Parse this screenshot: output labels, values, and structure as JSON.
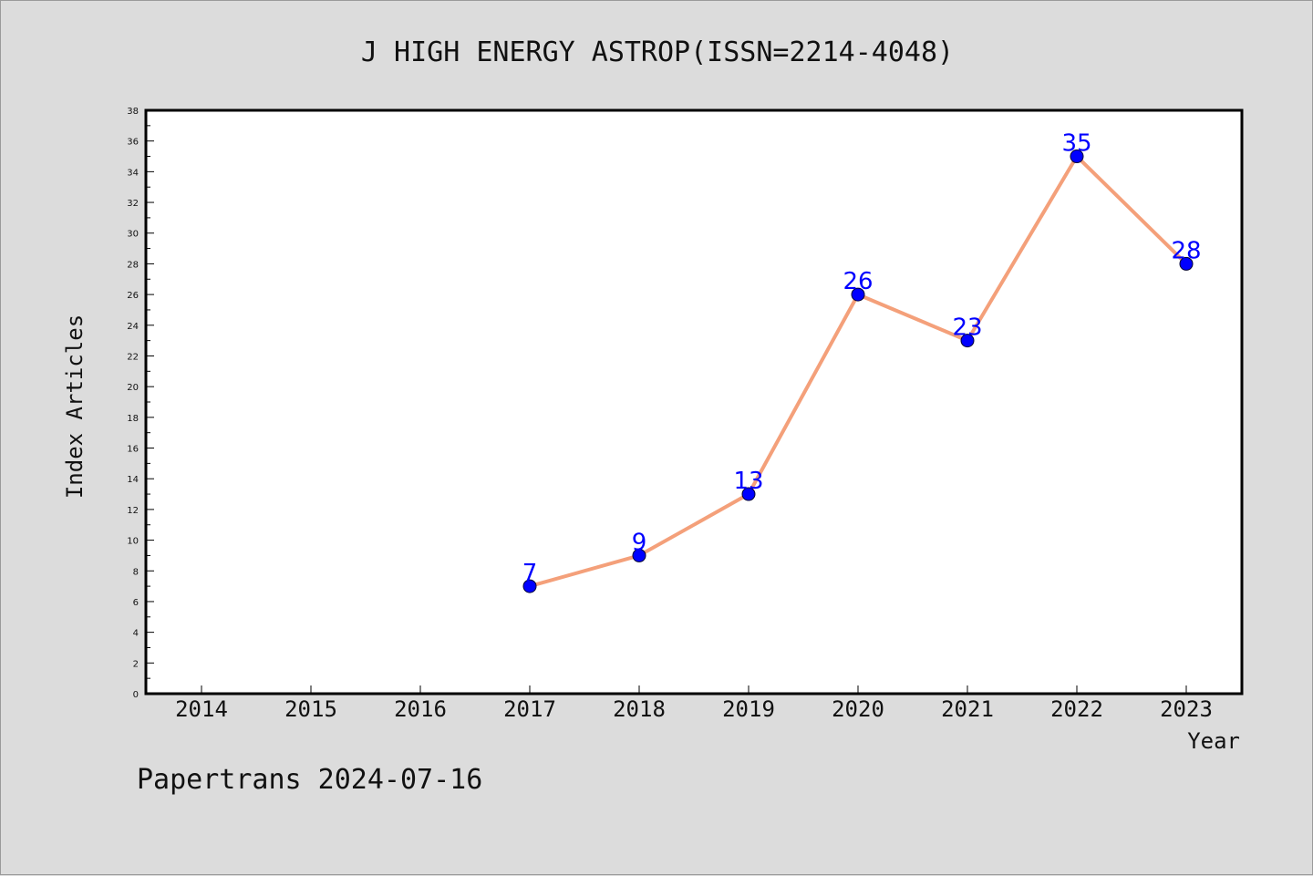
{
  "chart_data": {
    "type": "line",
    "title": "J HIGH ENERGY ASTROP(ISSN=2214-4048)",
    "xlabel": "Year",
    "ylabel": "Index Articles",
    "categories": [
      "2014",
      "2015",
      "2016",
      "2017",
      "2018",
      "2019",
      "2020",
      "2021",
      "2022",
      "2023"
    ],
    "series": [
      {
        "x": [
          "2017",
          "2018",
          "2019",
          "2020",
          "2021",
          "2022",
          "2023"
        ],
        "values": [
          7,
          9,
          13,
          26,
          23,
          35,
          28
        ],
        "labels": [
          "7",
          "9",
          "13",
          "26",
          "23",
          "35",
          "28"
        ]
      }
    ],
    "ylim": [
      0,
      38
    ],
    "ytick_step": 2,
    "yticks": [
      "0",
      "2",
      "4",
      "6",
      "8",
      "10",
      "12",
      "14",
      "16",
      "18",
      "20",
      "22",
      "24",
      "26",
      "28",
      "30",
      "32",
      "34",
      "36",
      "38"
    ],
    "grid": false,
    "line_color": "#f4a07a",
    "marker_color": "#0000ff",
    "label_color": "#0000ff"
  },
  "footer": {
    "text": "Papertrans 2024-07-16"
  }
}
